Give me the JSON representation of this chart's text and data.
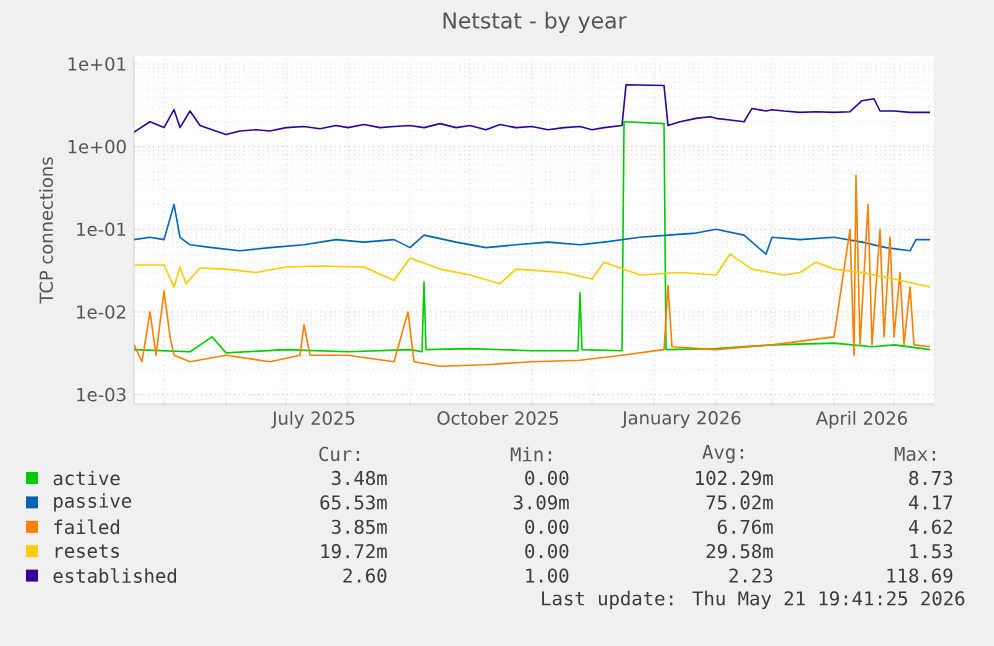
{
  "chart_data": {
    "type": "line",
    "title": "Netstat - by year",
    "ylabel": "TCP connections",
    "log": true,
    "grid": true,
    "legend": "bottom",
    "xlim": [
      "2025-04-16",
      "2026-05-21"
    ],
    "ylim": [
      0.00077,
      12.5
    ],
    "xticks": [
      {
        "value": "2025-05-01",
        "label": null
      },
      {
        "value": "2025-06-01",
        "label": null
      },
      {
        "value": "2025-07-01",
        "label": null
      },
      {
        "value": "2025-08-01",
        "label": null
      },
      {
        "value": "2025-09-01",
        "label": null
      },
      {
        "value": "2025-10-01",
        "label": null
      },
      {
        "value": "2025-11-01",
        "label": null
      },
      {
        "value": "2025-12-01",
        "label": null
      },
      {
        "value": "2026-01-01",
        "label": null
      },
      {
        "value": "2026-02-01",
        "label": null
      },
      {
        "value": "2026-03-01",
        "label": null
      },
      {
        "value": "2026-04-01",
        "label": null
      },
      {
        "value": "2026-05-01",
        "label": null
      },
      {
        "value": "2025-07-15",
        "label": "July 2025"
      },
      {
        "value": "2025-10-15",
        "label": "October 2025"
      },
      {
        "value": "2026-01-15",
        "label": "January 2026"
      },
      {
        "value": "2026-04-15",
        "label": "April 2026"
      }
    ],
    "yticks": [
      {
        "value": 0.001,
        "label": "1e-03"
      },
      {
        "value": 0.01,
        "label": "1e-02"
      },
      {
        "value": 0.1,
        "label": "1e-01"
      },
      {
        "value": 1,
        "label": "1e+00"
      },
      {
        "value": 10,
        "label": "1e+01"
      }
    ],
    "series": [
      {
        "name": "active",
        "color": "#00cc00",
        "x": [
          "2025-04-16",
          "2025-05-14",
          "2025-05-25",
          "2025-06-01",
          "2025-07-01",
          "2025-08-01",
          "2025-09-01",
          "2025-09-07",
          "2025-09-08",
          "2025-09-09",
          "2025-10-01",
          "2025-11-01",
          "2025-11-24",
          "2025-11-25",
          "2025-11-26",
          "2025-12-16",
          "2025-12-17",
          "2026-01-06",
          "2026-01-07",
          "2026-02-01",
          "2026-03-01",
          "2026-04-01",
          "2026-04-20",
          "2026-05-01",
          "2026-05-19"
        ],
        "values": [
          0.0035,
          0.0033,
          0.005,
          0.0032,
          0.0035,
          0.0033,
          0.0035,
          0.0033,
          0.023,
          0.0035,
          0.0036,
          0.0034,
          0.0034,
          0.017,
          0.0035,
          0.0034,
          2.0,
          1.9,
          0.0035,
          0.0036,
          0.004,
          0.0042,
          0.0038,
          0.004,
          0.0035
        ]
      },
      {
        "name": "passive",
        "color": "#0066b3",
        "x": [
          "2025-04-16",
          "2025-04-24",
          "2025-05-01",
          "2025-05-06",
          "2025-05-09",
          "2025-05-14",
          "2025-05-25",
          "2025-06-08",
          "2025-06-23",
          "2025-07-10",
          "2025-07-26",
          "2025-08-09",
          "2025-08-24",
          "2025-09-01",
          "2025-09-08",
          "2025-09-24",
          "2025-10-09",
          "2025-10-24",
          "2025-11-09",
          "2025-11-25",
          "2025-12-07",
          "2025-12-25",
          "2026-01-08",
          "2026-01-22",
          "2026-02-01",
          "2026-02-15",
          "2026-02-26",
          "2026-03-01",
          "2026-03-15",
          "2026-04-01",
          "2026-04-15",
          "2026-04-27",
          "2026-05-09",
          "2026-05-12",
          "2026-05-19"
        ],
        "values": [
          0.075,
          0.08,
          0.075,
          0.2,
          0.08,
          0.065,
          0.06,
          0.055,
          0.06,
          0.065,
          0.075,
          0.07,
          0.075,
          0.06,
          0.085,
          0.07,
          0.06,
          0.065,
          0.07,
          0.065,
          0.07,
          0.08,
          0.085,
          0.09,
          0.1,
          0.085,
          0.05,
          0.08,
          0.075,
          0.08,
          0.07,
          0.06,
          0.055,
          0.075,
          0.075
        ]
      },
      {
        "name": "failed",
        "color": "#ff8000",
        "x": [
          "2025-04-16",
          "2025-04-20",
          "2025-04-24",
          "2025-04-27",
          "2025-05-01",
          "2025-05-04",
          "2025-05-06",
          "2025-05-14",
          "2025-06-01",
          "2025-06-23",
          "2025-07-08",
          "2025-07-10",
          "2025-07-13",
          "2025-08-01",
          "2025-08-24",
          "2025-08-31",
          "2025-09-03",
          "2025-09-16",
          "2025-10-09",
          "2025-11-01",
          "2025-11-25",
          "2025-12-16",
          "2026-01-06",
          "2026-01-08",
          "2026-01-10",
          "2026-02-01",
          "2026-03-01",
          "2026-04-01",
          "2026-04-09",
          "2026-04-11",
          "2026-04-12",
          "2026-04-14",
          "2026-04-18",
          "2026-04-20",
          "2026-04-24",
          "2026-04-26",
          "2026-04-29",
          "2026-05-01",
          "2026-05-04",
          "2026-05-06",
          "2026-05-09",
          "2026-05-11",
          "2026-05-19"
        ],
        "values": [
          0.004,
          0.0025,
          0.01,
          0.003,
          0.018,
          0.005,
          0.003,
          0.0025,
          0.003,
          0.0025,
          0.003,
          0.007,
          0.003,
          0.003,
          0.0025,
          0.01,
          0.0025,
          0.0022,
          0.0023,
          0.0025,
          0.0026,
          0.003,
          0.0035,
          0.021,
          0.0038,
          0.0035,
          0.004,
          0.005,
          0.1,
          0.003,
          0.45,
          0.004,
          0.2,
          0.004,
          0.1,
          0.005,
          0.08,
          0.005,
          0.03,
          0.004,
          0.02,
          0.004,
          0.0038
        ]
      },
      {
        "name": "resets",
        "color": "#ffcc00",
        "x": [
          "2025-04-16",
          "2025-05-01",
          "2025-05-06",
          "2025-05-09",
          "2025-05-12",
          "2025-05-19",
          "2025-06-01",
          "2025-06-16",
          "2025-07-01",
          "2025-07-18",
          "2025-08-09",
          "2025-08-24",
          "2025-09-01",
          "2025-09-16",
          "2025-10-01",
          "2025-10-16",
          "2025-10-24",
          "2025-11-17",
          "2025-12-01",
          "2025-12-07",
          "2025-12-25",
          "2026-01-14",
          "2026-02-01",
          "2026-02-08",
          "2026-02-19",
          "2026-03-07",
          "2026-03-15",
          "2026-03-23",
          "2026-04-01",
          "2026-04-15",
          "2026-05-01",
          "2026-05-19"
        ],
        "values": [
          0.037,
          0.037,
          0.02,
          0.035,
          0.022,
          0.034,
          0.033,
          0.03,
          0.035,
          0.036,
          0.035,
          0.024,
          0.045,
          0.033,
          0.028,
          0.022,
          0.033,
          0.03,
          0.025,
          0.04,
          0.028,
          0.03,
          0.028,
          0.05,
          0.033,
          0.028,
          0.03,
          0.04,
          0.033,
          0.03,
          0.025,
          0.02
        ]
      },
      {
        "name": "established",
        "color": "#330099",
        "x": [
          "2025-04-16",
          "2025-04-24",
          "2025-05-01",
          "2025-05-06",
          "2025-05-09",
          "2025-05-14",
          "2025-05-19",
          "2025-05-25",
          "2025-06-01",
          "2025-06-08",
          "2025-06-16",
          "2025-06-23",
          "2025-07-01",
          "2025-07-10",
          "2025-07-18",
          "2025-07-26",
          "2025-08-01",
          "2025-08-09",
          "2025-08-17",
          "2025-08-24",
          "2025-09-01",
          "2025-09-08",
          "2025-09-16",
          "2025-09-24",
          "2025-10-01",
          "2025-10-09",
          "2025-10-16",
          "2025-10-24",
          "2025-11-01",
          "2025-11-09",
          "2025-11-17",
          "2025-11-25",
          "2025-12-01",
          "2025-12-07",
          "2025-12-16",
          "2025-12-18",
          "2026-01-06",
          "2026-01-08",
          "2026-01-14",
          "2026-01-22",
          "2026-01-29",
          "2026-02-01",
          "2026-02-08",
          "2026-02-15",
          "2026-02-19",
          "2026-02-26",
          "2026-03-01",
          "2026-03-07",
          "2026-03-15",
          "2026-03-23",
          "2026-04-01",
          "2026-04-09",
          "2026-04-15",
          "2026-04-21",
          "2026-04-24",
          "2026-05-01",
          "2026-05-09",
          "2026-05-19"
        ],
        "values": [
          1.5,
          2.0,
          1.7,
          2.8,
          1.7,
          2.7,
          1.8,
          1.6,
          1.4,
          1.55,
          1.6,
          1.55,
          1.7,
          1.75,
          1.65,
          1.8,
          1.7,
          1.85,
          1.7,
          1.75,
          1.8,
          1.7,
          1.9,
          1.7,
          1.8,
          1.6,
          1.85,
          1.7,
          1.75,
          1.6,
          1.7,
          1.75,
          1.6,
          1.7,
          1.8,
          5.6,
          5.5,
          1.8,
          2.0,
          2.2,
          2.3,
          2.2,
          2.1,
          2.0,
          2.9,
          2.7,
          2.8,
          2.7,
          2.6,
          2.65,
          2.6,
          2.65,
          3.6,
          3.8,
          2.7,
          2.7,
          2.6,
          2.6
        ]
      }
    ],
    "annotations": [
      "Cur:",
      "Min:",
      "Avg:",
      "Max:",
      "3.48m",
      "0.00",
      "102.29m",
      "8.73",
      "65.53m",
      "3.09m",
      "75.02m",
      "4.17",
      "3.85m",
      "0.00",
      "6.76m",
      "4.62",
      "19.72m",
      "0.00",
      "29.58m",
      "1.53",
      "2.60",
      "1.00",
      "2.23",
      "118.69",
      "Last update: Thu May 21 19:41:25 2026"
    ]
  }
}
